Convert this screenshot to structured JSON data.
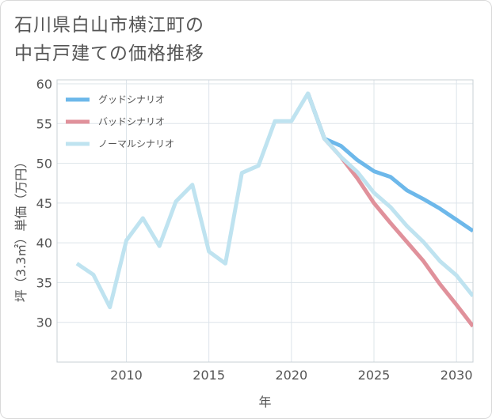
{
  "chart_data": {
    "type": "line",
    "title_lines": [
      "石川県白山市横江町の",
      "中古戸建ての価格推移"
    ],
    "xlabel": "年",
    "ylabel": "坪（3.3㎡）単価（万円）",
    "xlim": [
      2005.8,
      2031.0
    ],
    "ylim": [
      25.0,
      60.5
    ],
    "x_ticks": [
      2010,
      2015,
      2020,
      2025,
      2030
    ],
    "y_ticks": [
      30,
      35,
      40,
      45,
      50,
      55,
      60
    ],
    "grid": true,
    "legend_position": "top-left",
    "series": [
      {
        "name": "グッドシナリオ",
        "color": "#6db8ea",
        "x": [
          2021,
          2022,
          2023,
          2024,
          2025,
          2026,
          2027,
          2028,
          2029,
          2030,
          2031
        ],
        "y": [
          58.8,
          53.1,
          52.2,
          50.4,
          49.0,
          48.3,
          46.6,
          45.5,
          44.3,
          42.9,
          41.5
        ]
      },
      {
        "name": "バッドシナリオ",
        "color": "#e0919b",
        "x": [
          2021,
          2022,
          2023,
          2024,
          2025,
          2026,
          2027,
          2028,
          2029,
          2030,
          2031
        ],
        "y": [
          58.8,
          53.1,
          50.8,
          48.1,
          45.0,
          42.5,
          40.1,
          37.7,
          34.8,
          32.2,
          29.5
        ]
      },
      {
        "name": "ノーマルシナリオ",
        "color": "#bfe3f0",
        "x": [
          2007,
          2008,
          2009,
          2010,
          2011,
          2012,
          2013,
          2014,
          2015,
          2016,
          2017,
          2018,
          2019,
          2020,
          2021,
          2022,
          2023,
          2024,
          2025,
          2026,
          2027,
          2028,
          2029,
          2030,
          2031
        ],
        "y": [
          37.4,
          36.0,
          31.9,
          40.3,
          43.1,
          39.6,
          45.2,
          47.3,
          38.9,
          37.4,
          48.8,
          49.7,
          55.3,
          55.3,
          58.8,
          53.1,
          50.8,
          48.9,
          46.3,
          44.5,
          42.1,
          40.1,
          37.7,
          35.9,
          33.3
        ]
      }
    ]
  }
}
